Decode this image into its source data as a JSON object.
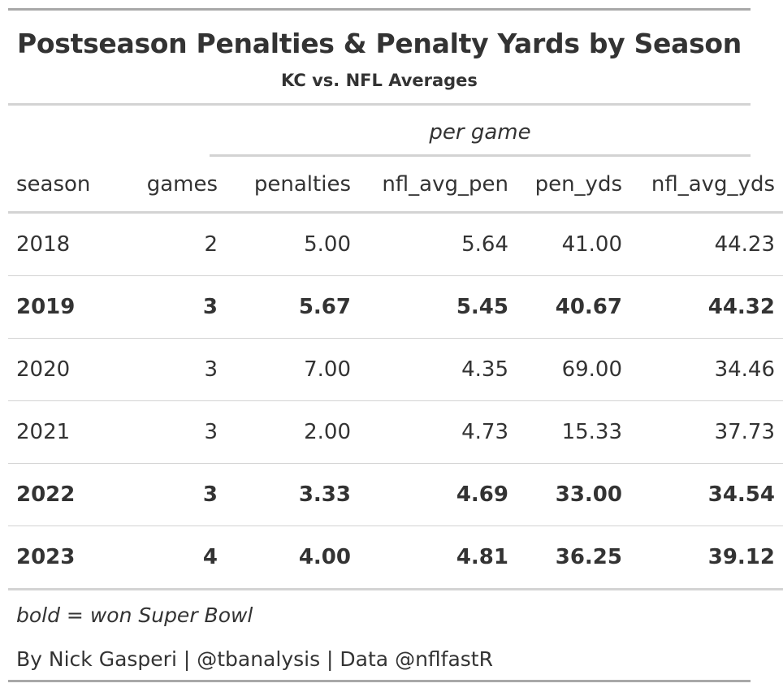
{
  "chart_data": {
    "type": "table",
    "title": "Postseason Penalties & Penalty Yards by Season",
    "subtitle": "KC vs. NFL Averages",
    "spanner": "per game",
    "columns": [
      "season",
      "games",
      "penalties",
      "nfl_avg_pen",
      "pen_yds",
      "nfl_avg_yds"
    ],
    "rows": [
      {
        "season": "2018",
        "games": "2",
        "penalties": "5.00",
        "nfl_avg_pen": "5.64",
        "pen_yds": "41.00",
        "nfl_avg_yds": "44.23",
        "bold": false
      },
      {
        "season": "2019",
        "games": "3",
        "penalties": "5.67",
        "nfl_avg_pen": "5.45",
        "pen_yds": "40.67",
        "nfl_avg_yds": "44.32",
        "bold": true
      },
      {
        "season": "2020",
        "games": "3",
        "penalties": "7.00",
        "nfl_avg_pen": "4.35",
        "pen_yds": "69.00",
        "nfl_avg_yds": "34.46",
        "bold": false
      },
      {
        "season": "2021",
        "games": "3",
        "penalties": "2.00",
        "nfl_avg_pen": "4.73",
        "pen_yds": "15.33",
        "nfl_avg_yds": "37.73",
        "bold": false
      },
      {
        "season": "2022",
        "games": "3",
        "penalties": "3.33",
        "nfl_avg_pen": "4.69",
        "pen_yds": "33.00",
        "nfl_avg_yds": "34.54",
        "bold": true
      },
      {
        "season": "2023",
        "games": "4",
        "penalties": "4.00",
        "nfl_avg_pen": "4.81",
        "pen_yds": "36.25",
        "nfl_avg_yds": "39.12",
        "bold": true
      }
    ],
    "footnote": "bold = won Super Bowl",
    "source": "By Nick Gasperi | @tbanalysis | Data @nflfastR"
  },
  "colors": {
    "text": "#333333",
    "rule_outer": "#a8a8a8",
    "rule_inner": "#d3d3d3",
    "background": "#ffffff"
  }
}
